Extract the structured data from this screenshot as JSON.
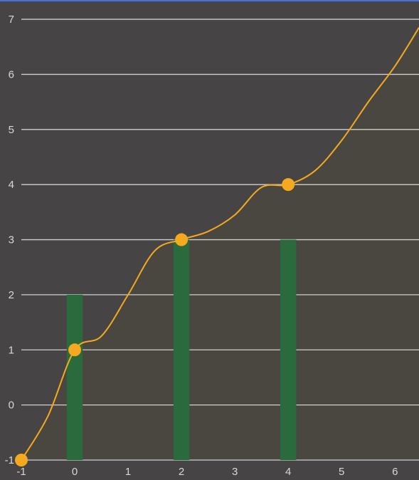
{
  "colors": {
    "background": "#464444",
    "top_border": "#4a6fd1",
    "grid": "#cfcfcf",
    "tick_text": "#d8d8d8",
    "line": "#f5a91e",
    "area": "#4a4640",
    "bar": "#2a6a3c",
    "point": "#f5a91e"
  },
  "chart_data": {
    "type": "line",
    "title": "",
    "xlabel": "",
    "ylabel": "",
    "xlim": [
      -1,
      6.45
    ],
    "ylim": [
      -1,
      7.35
    ],
    "grid": true,
    "x_ticks": [
      "-1",
      "0",
      "1",
      "2",
      "3",
      "4",
      "5",
      "6"
    ],
    "y_ticks": [
      "-1",
      "0",
      "1",
      "2",
      "3",
      "4",
      "5",
      "6",
      "7"
    ],
    "bars": {
      "x": [
        0,
        2,
        4
      ],
      "values": [
        2,
        3,
        3
      ],
      "width": 0.3
    },
    "points": {
      "x": [
        -1,
        0,
        2,
        4
      ],
      "y": [
        -1,
        1,
        3,
        4
      ]
    },
    "curve": {
      "x": [
        -1,
        -0.5,
        0,
        0.5,
        1,
        1.5,
        2,
        2.5,
        3,
        3.5,
        4,
        4.5,
        5,
        5.5,
        6,
        6.45
      ],
      "y": [
        -1,
        -0.2,
        1,
        1.25,
        2,
        2.8,
        3,
        3.15,
        3.45,
        3.95,
        4,
        4.25,
        4.8,
        5.5,
        6.15,
        6.85
      ]
    }
  }
}
